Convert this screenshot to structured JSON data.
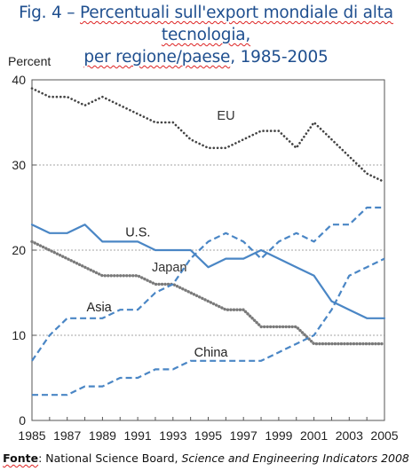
{
  "title": {
    "prefix": "Fig. 4 – ",
    "line1_underlined": "Percentuali sull'export mondiale di alta tecnologia,",
    "line2_underlined_a": "per regione/paese",
    "line2_rest": ", 1985-2005"
  },
  "source": {
    "label": "Fonte",
    "text": ": National Science Board, ",
    "publication": "Science and Engineering Indicators 2008"
  },
  "chart_data": {
    "type": "line",
    "title": "Fig. 4 – Percentuali sull'export mondiale di alta tecnologia, per regione/paese, 1985-2005",
    "ylabel": "Percent",
    "xlabel": "",
    "ylim": [
      0,
      40
    ],
    "yticks": [
      "0",
      "10",
      "20",
      "30",
      "40"
    ],
    "xlim": [
      1985,
      2005
    ],
    "xticks": [
      "1985",
      "1987",
      "1989",
      "1991",
      "1993",
      "1995",
      "1997",
      "1999",
      "2001",
      "2003",
      "2005"
    ],
    "grid": "horizontal dashed at 10, 20, 30",
    "x": [
      1985,
      1986,
      1987,
      1988,
      1989,
      1990,
      1991,
      1992,
      1993,
      1994,
      1995,
      1996,
      1997,
      1998,
      1999,
      2000,
      2001,
      2002,
      2003,
      2004,
      2005
    ],
    "series": [
      {
        "name": "EU",
        "color": "#444444",
        "style": "dotted",
        "values": [
          39,
          38,
          38,
          37,
          38,
          37,
          36,
          35,
          35,
          33,
          32,
          32,
          33,
          34,
          34,
          32,
          35,
          33,
          31,
          29,
          28
        ]
      },
      {
        "name": "U.S.",
        "color": "#4a86c5",
        "style": "solid",
        "values": [
          23,
          22,
          22,
          23,
          21,
          21,
          21,
          20,
          20,
          20,
          18,
          19,
          19,
          20,
          19,
          18,
          17,
          14,
          13,
          12,
          12
        ]
      },
      {
        "name": "Japan",
        "color": "#7a7a7a",
        "style": "dotted-thick",
        "values": [
          21,
          20,
          19,
          18,
          17,
          17,
          17,
          16,
          16,
          15,
          14,
          13,
          13,
          11,
          11,
          11,
          9,
          9,
          9,
          9,
          9
        ]
      },
      {
        "name": "Asia",
        "color": "#4a86c5",
        "style": "dashed",
        "values": [
          7,
          10,
          12,
          12,
          12,
          13,
          13,
          15,
          16,
          19,
          21,
          22,
          21,
          19,
          21,
          22,
          21,
          23,
          23,
          25,
          25
        ]
      },
      {
        "name": "China",
        "color": "#4a86c5",
        "style": "dashed",
        "values": [
          3,
          3,
          3,
          4,
          4,
          5,
          5,
          6,
          6,
          7,
          7,
          7,
          7,
          7,
          8,
          9,
          10,
          13,
          17,
          18,
          19
        ]
      }
    ],
    "annotations": [
      {
        "text": "EU",
        "x": 1995.5,
        "y": 35.3
      },
      {
        "text": "U.S.",
        "x": 1990.3,
        "y": 21.6
      },
      {
        "text": "Japan",
        "x": 1991.8,
        "y": 17.5
      },
      {
        "text": "Asia",
        "x": 1988.1,
        "y": 12.8
      },
      {
        "text": "China",
        "x": 1994.2,
        "y": 7.5
      }
    ]
  }
}
